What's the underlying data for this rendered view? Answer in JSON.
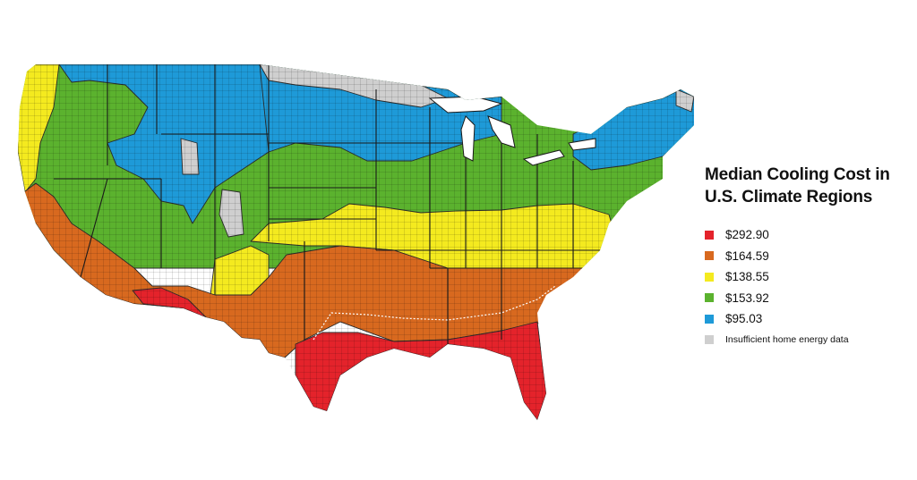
{
  "legend": {
    "title": "Median Cooling Cost in\nU.S. Climate Regions",
    "items": [
      {
        "label": "$292.90",
        "color": "#e4232b"
      },
      {
        "label": "$164.59",
        "color": "#d8691f"
      },
      {
        "label": "$138.55",
        "color": "#f4ea1f"
      },
      {
        "label": "$153.92",
        "color": "#5bb22e"
      },
      {
        "label": "$95.03",
        "color": "#1e9ad8"
      },
      {
        "label": "Insufficient home energy data",
        "color": "#cfcfcf"
      }
    ]
  },
  "map": {
    "subject": "contiguous-united-states",
    "regions": [
      {
        "id": "hot-humid",
        "value": "$292.90",
        "color": "#e4232b"
      },
      {
        "id": "hot-dry-mixed-dry",
        "value": "$164.59",
        "color": "#d8691f"
      },
      {
        "id": "mixed-humid-marine",
        "value": "$138.55",
        "color": "#f4ea1f"
      },
      {
        "id": "cold",
        "value": "$153.92",
        "color": "#5bb22e"
      },
      {
        "id": "very-cold",
        "value": "$95.03",
        "color": "#1e9ad8"
      },
      {
        "id": "no-data",
        "value": "Insufficient home energy data",
        "color": "#cfcfcf"
      }
    ]
  }
}
